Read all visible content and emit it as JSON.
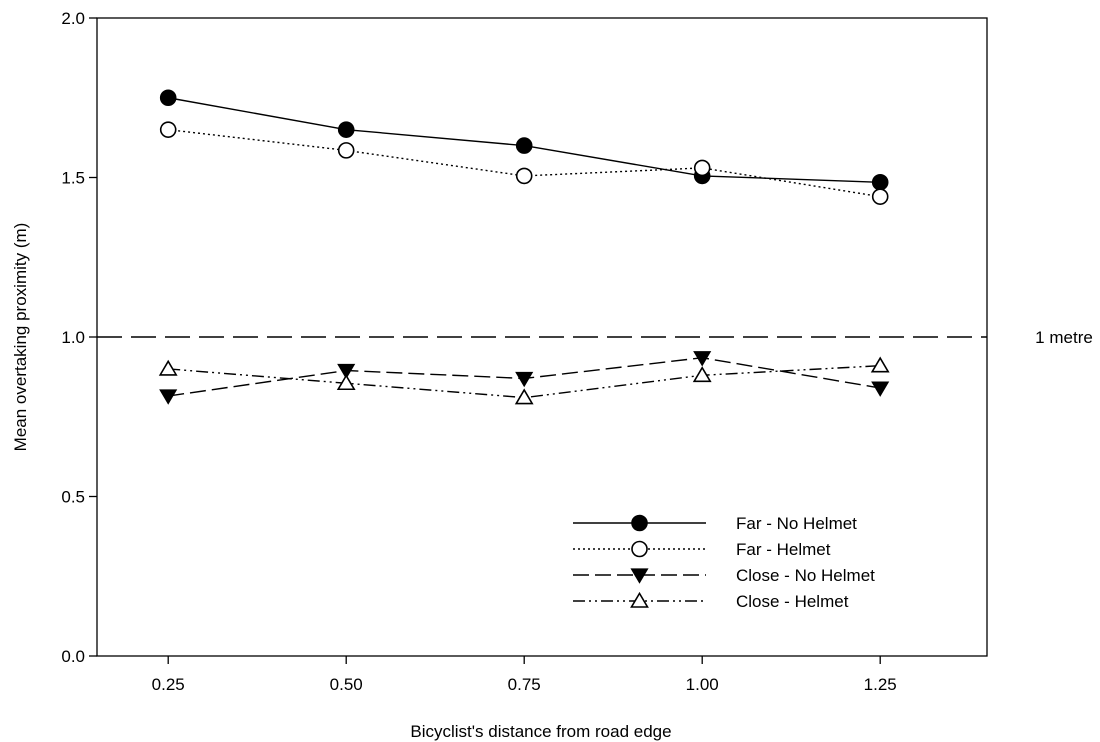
{
  "chart_data": {
    "type": "line",
    "title": "",
    "xlabel": "Bicyclist's distance from road edge",
    "ylabel": "Mean overtaking proximity (m)",
    "x": [
      0.25,
      0.5,
      0.75,
      1.0,
      1.25
    ],
    "x_tick_labels": [
      "0.25",
      "0.50",
      "0.75",
      "1.00",
      "1.25"
    ],
    "xlim": [
      0.15,
      1.4
    ],
    "ylim": [
      0.0,
      2.0
    ],
    "y_ticks": [
      0.0,
      0.5,
      1.0,
      1.5,
      2.0
    ],
    "y_tick_labels": [
      "0.0",
      "0.5",
      "1.0",
      "1.5",
      "2.0"
    ],
    "grid": false,
    "legend_position": "bottom-right",
    "reference_line": {
      "y": 1.0,
      "label": "1 metre",
      "style": "long-dash"
    },
    "series": [
      {
        "name": "Far - No Helmet",
        "values": [
          1.75,
          1.65,
          1.6,
          1.505,
          1.485
        ],
        "marker": "filled-circle",
        "line_style": "solid",
        "color": "#000000"
      },
      {
        "name": "Far - Helmet",
        "values": [
          1.65,
          1.585,
          1.505,
          1.53,
          1.44
        ],
        "marker": "open-circle",
        "line_style": "dotted",
        "color": "#000000"
      },
      {
        "name": "Close - No Helmet",
        "values": [
          0.815,
          0.895,
          0.87,
          0.935,
          0.84
        ],
        "marker": "filled-triangle-down",
        "line_style": "dashed",
        "color": "#000000"
      },
      {
        "name": "Close - Helmet",
        "values": [
          0.9,
          0.855,
          0.81,
          0.88,
          0.91
        ],
        "marker": "open-triangle-up",
        "line_style": "dash-dot-dot",
        "color": "#000000"
      }
    ]
  }
}
